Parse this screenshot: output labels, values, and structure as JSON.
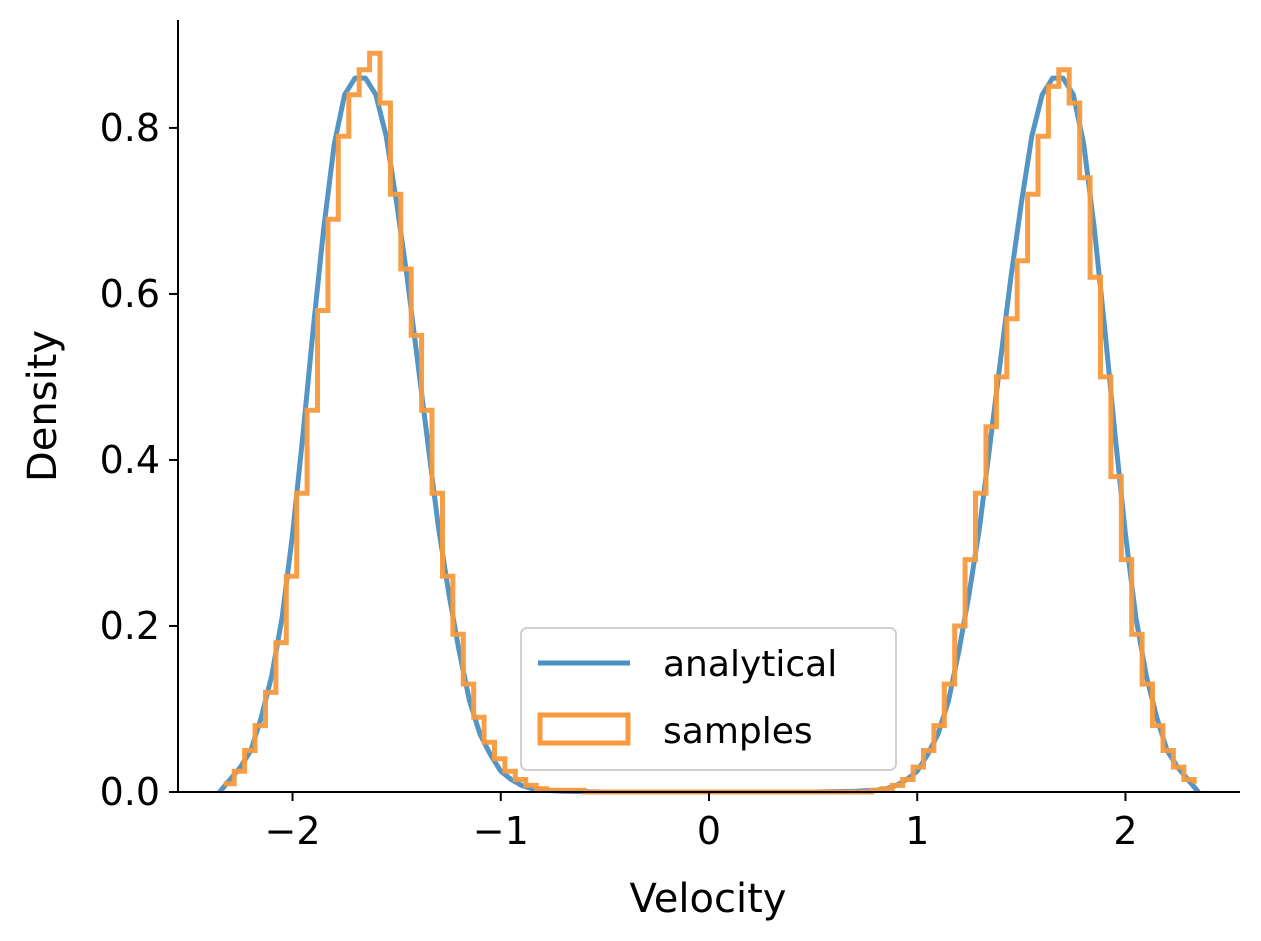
{
  "chart_data": {
    "type": "line",
    "title": "",
    "xlabel": "Velocity",
    "ylabel": "Density",
    "xlim": [
      -2.55,
      2.55
    ],
    "ylim": [
      0.0,
      0.93
    ],
    "x_ticks": [
      -2,
      -1,
      0,
      1,
      2
    ],
    "x_tick_labels": [
      "−2",
      "−1",
      "0",
      "1",
      "2"
    ],
    "y_ticks": [
      0.0,
      0.2,
      0.4,
      0.6,
      0.8
    ],
    "y_tick_labels": [
      "0.0",
      "0.2",
      "0.4",
      "0.6",
      "0.8"
    ],
    "grid": false,
    "legend_position": "lower-center",
    "series": [
      {
        "name": "analytical",
        "kind": "line",
        "color": "#4b8fc1",
        "x": [
          -2.35,
          -2.25,
          -2.2,
          -2.15,
          -2.1,
          -2.05,
          -2.0,
          -1.95,
          -1.9,
          -1.85,
          -1.8,
          -1.75,
          -1.7,
          -1.65,
          -1.6,
          -1.55,
          -1.5,
          -1.45,
          -1.4,
          -1.35,
          -1.3,
          -1.25,
          -1.2,
          -1.15,
          -1.1,
          -1.05,
          -1.0,
          -0.95,
          -0.9,
          -0.85,
          -0.8,
          -0.7,
          -0.6,
          -0.5,
          -0.3,
          0.0,
          0.3,
          0.5,
          0.6,
          0.7,
          0.8,
          0.85,
          0.9,
          0.95,
          1.0,
          1.05,
          1.1,
          1.15,
          1.2,
          1.25,
          1.3,
          1.35,
          1.4,
          1.45,
          1.5,
          1.55,
          1.6,
          1.65,
          1.7,
          1.75,
          1.8,
          1.85,
          1.9,
          1.95,
          2.0,
          2.05,
          2.1,
          2.15,
          2.2,
          2.25,
          2.35
        ],
        "y": [
          0.0,
          0.03,
          0.05,
          0.09,
          0.14,
          0.21,
          0.31,
          0.43,
          0.56,
          0.68,
          0.78,
          0.84,
          0.86,
          0.86,
          0.84,
          0.79,
          0.71,
          0.62,
          0.52,
          0.42,
          0.32,
          0.24,
          0.17,
          0.11,
          0.07,
          0.045,
          0.025,
          0.015,
          0.008,
          0.004,
          0.002,
          0.001,
          0.0005,
          0.0,
          0.0,
          0.0,
          0.0,
          0.0,
          0.0005,
          0.001,
          0.002,
          0.004,
          0.008,
          0.015,
          0.025,
          0.045,
          0.07,
          0.11,
          0.17,
          0.24,
          0.32,
          0.42,
          0.52,
          0.62,
          0.71,
          0.79,
          0.84,
          0.86,
          0.86,
          0.84,
          0.78,
          0.68,
          0.56,
          0.43,
          0.31,
          0.21,
          0.14,
          0.09,
          0.05,
          0.03,
          0.0
        ]
      },
      {
        "name": "samples",
        "kind": "step",
        "color": "#f79a3e",
        "x": [
          -2.33,
          -2.28,
          -2.23,
          -2.18,
          -2.13,
          -2.08,
          -2.03,
          -1.98,
          -1.93,
          -1.88,
          -1.83,
          -1.78,
          -1.73,
          -1.68,
          -1.63,
          -1.58,
          -1.53,
          -1.48,
          -1.43,
          -1.38,
          -1.33,
          -1.28,
          -1.23,
          -1.18,
          -1.13,
          -1.08,
          -1.03,
          -0.98,
          -0.93,
          -0.88,
          -0.83,
          -0.78,
          -0.6,
          -0.4,
          0.0,
          0.4,
          0.6,
          0.78,
          0.83,
          0.88,
          0.93,
          0.98,
          1.03,
          1.08,
          1.13,
          1.18,
          1.23,
          1.28,
          1.33,
          1.38,
          1.43,
          1.48,
          1.53,
          1.58,
          1.63,
          1.68,
          1.73,
          1.78,
          1.83,
          1.88,
          1.93,
          1.98,
          2.03,
          2.08,
          2.13,
          2.18,
          2.23,
          2.28,
          2.33
        ],
        "y": [
          0.01,
          0.025,
          0.05,
          0.08,
          0.12,
          0.18,
          0.26,
          0.36,
          0.46,
          0.58,
          0.69,
          0.79,
          0.84,
          0.87,
          0.89,
          0.83,
          0.72,
          0.63,
          0.55,
          0.46,
          0.36,
          0.26,
          0.19,
          0.13,
          0.09,
          0.06,
          0.04,
          0.025,
          0.015,
          0.008,
          0.004,
          0.002,
          0.0,
          0.0,
          0.0,
          0.0,
          0.0,
          0.002,
          0.004,
          0.008,
          0.015,
          0.03,
          0.05,
          0.08,
          0.13,
          0.2,
          0.28,
          0.36,
          0.44,
          0.5,
          0.57,
          0.64,
          0.72,
          0.79,
          0.85,
          0.87,
          0.83,
          0.74,
          0.62,
          0.5,
          0.38,
          0.28,
          0.19,
          0.13,
          0.08,
          0.05,
          0.03,
          0.015,
          0.01
        ]
      }
    ]
  }
}
